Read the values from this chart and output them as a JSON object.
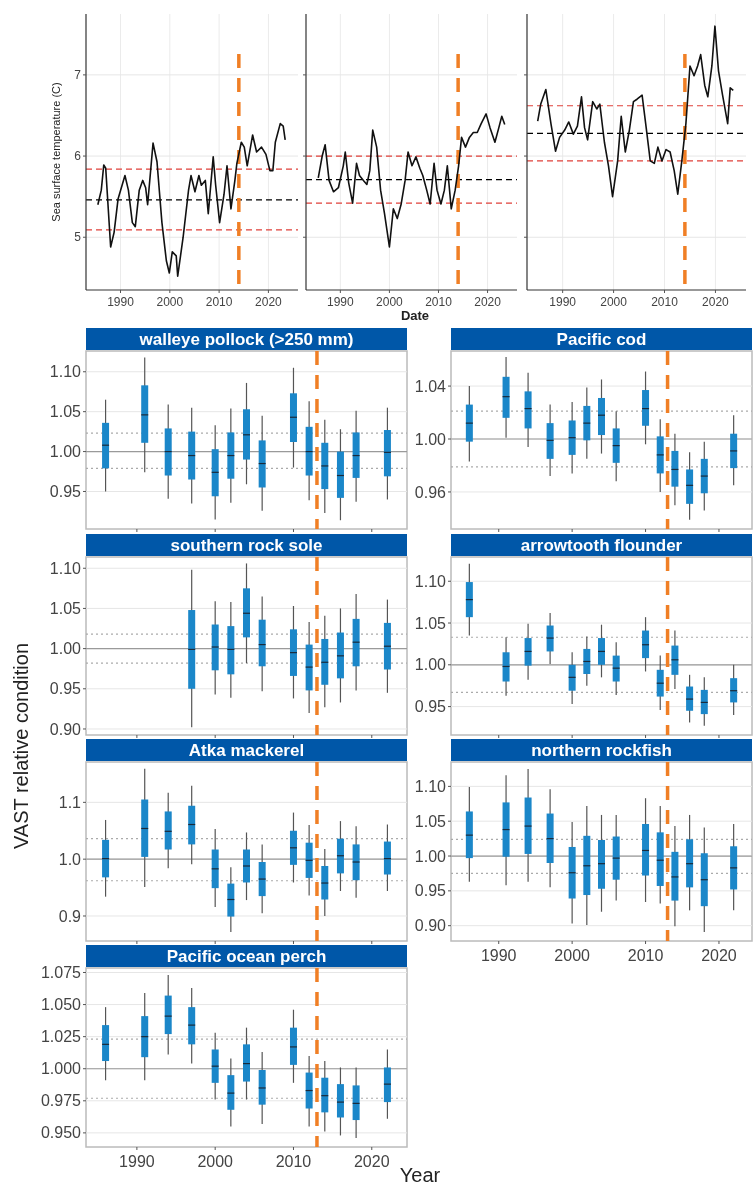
{
  "chart_data": [
    {
      "type": "line",
      "ylabel": "Sea surface temperature (C)",
      "xlim": [
        1983,
        2026
      ],
      "ylim": [
        4.35,
        7.75
      ],
      "xticks": [
        1990,
        2000,
        2010,
        2020
      ],
      "yticks": [
        5,
        6,
        7
      ],
      "grid": true,
      "ref_lines": [
        {
          "axis": "y",
          "value": 5.46,
          "color": "#000000",
          "line_style": "dashed"
        },
        {
          "axis": "y",
          "value": 5.84,
          "color": "#e0403a",
          "line_style": "dashed"
        },
        {
          "axis": "y",
          "value": 5.09,
          "color": "#e0403a",
          "line_style": "dashed"
        },
        {
          "axis": "x",
          "value": 2014,
          "color": "#f07f25",
          "line_style": "dashed"
        }
      ],
      "series": [
        {
          "color": "#111111",
          "x": [
            1985.4,
            1986.1,
            1986.6,
            1987,
            1988,
            1988.7,
            1989.5,
            1990.9,
            1991.6,
            1992.4,
            1993,
            1993.8,
            1994.5,
            1995.1,
            1995.5,
            1996.6,
            1997.4,
            1998.4,
            1999.3,
            1999.9,
            2000.5,
            2001.3,
            2001.6,
            2002.7,
            2003.8,
            2004.3,
            2005.1,
            2005.9,
            2006.4,
            2007.2,
            2007.8,
            2008.8,
            2009.3,
            2010.1,
            2011,
            2011.6,
            2012.4,
            2013.2,
            2013.6,
            2014.5,
            2015.1,
            2015.7,
            2016.8,
            2017.6,
            2018.6,
            2019.5,
            2020.3,
            2020.9,
            2021.4,
            2022.4,
            2023,
            2023.4
          ],
          "values": [
            5.4,
            5.58,
            5.89,
            5.85,
            4.88,
            5.06,
            5.47,
            5.76,
            5.58,
            5.18,
            5.13,
            5.58,
            5.7,
            5.61,
            5.4,
            6.16,
            5.93,
            5.18,
            4.71,
            4.56,
            4.82,
            4.77,
            4.52,
            5.0,
            5.58,
            5.76,
            5.56,
            5.76,
            5.64,
            5.7,
            5.29,
            5.99,
            5.64,
            5.18,
            5.53,
            5.88,
            5.35,
            5.7,
            5.91,
            6.17,
            6.11,
            5.88,
            6.26,
            6.05,
            6.11,
            6.02,
            5.82,
            5.82,
            6.17,
            6.4,
            6.37,
            6.2
          ]
        }
      ]
    },
    {
      "type": "line",
      "xlabel": "Date",
      "xlim": [
        1983,
        2026
      ],
      "ylim": [
        4.35,
        7.75
      ],
      "xticks": [
        1990,
        2000,
        2010,
        2020
      ],
      "yticks": [
        5,
        6,
        7
      ],
      "grid": true,
      "tick_labels": "x",
      "ref_lines": [
        {
          "axis": "y",
          "value": 5.71,
          "color": "#000000",
          "line_style": "dashed"
        },
        {
          "axis": "y",
          "value": 6.0,
          "color": "#e0403a",
          "line_style": "dashed"
        },
        {
          "axis": "y",
          "value": 5.42,
          "color": "#e0403a",
          "line_style": "dashed"
        },
        {
          "axis": "x",
          "value": 2014,
          "color": "#f07f25",
          "line_style": "dashed"
        }
      ],
      "series": [
        {
          "color": "#111111",
          "x": [
            1985.5,
            1986.3,
            1986.9,
            1987.7,
            1988.6,
            1989.6,
            1990.6,
            1991,
            1991.7,
            1992.5,
            1993.3,
            1993.9,
            1994.7,
            1995.4,
            1996,
            1996.6,
            1997.4,
            1998.2,
            1999,
            2000,
            2000.8,
            2001.6,
            2002.4,
            2003.2,
            2003.8,
            2004.6,
            2005.4,
            2006.2,
            2006.8,
            2007.6,
            2008.3,
            2009.1,
            2009.7,
            2010.5,
            2011.2,
            2011.8,
            2012.6,
            2013.4,
            2014.1,
            2014.7,
            2015.5,
            2016.3,
            2017.1,
            2017.9,
            2018.7,
            2019.7,
            2020.5,
            2021.5,
            2022.3,
            2022.9,
            2023.5
          ],
          "values": [
            5.73,
            6.0,
            6.14,
            5.7,
            5.56,
            5.61,
            5.88,
            6.05,
            5.67,
            5.42,
            5.91,
            5.76,
            5.7,
            5.65,
            5.82,
            6.32,
            6.11,
            5.58,
            5.29,
            4.88,
            5.35,
            5.23,
            5.41,
            5.7,
            6.05,
            5.88,
            5.99,
            5.85,
            5.76,
            5.58,
            5.41,
            5.91,
            5.58,
            5.41,
            5.58,
            5.88,
            5.35,
            5.58,
            5.88,
            6.23,
            6.11,
            6.23,
            6.29,
            6.29,
            6.4,
            6.52,
            6.35,
            6.17,
            6.35,
            6.49,
            6.39
          ]
        }
      ]
    },
    {
      "type": "line",
      "xlim": [
        1983,
        2026
      ],
      "ylim": [
        4.35,
        7.75
      ],
      "xticks": [
        1990,
        2000,
        2010,
        2020
      ],
      "yticks": [
        5,
        6,
        7
      ],
      "grid": true,
      "tick_labels": "x",
      "ref_lines": [
        {
          "axis": "y",
          "value": 6.28,
          "color": "#000000",
          "line_style": "dashed"
        },
        {
          "axis": "y",
          "value": 6.62,
          "color": "#e0403a",
          "line_style": "dashed"
        },
        {
          "axis": "y",
          "value": 5.94,
          "color": "#e0403a",
          "line_style": "dashed"
        },
        {
          "axis": "x",
          "value": 2014,
          "color": "#f07f25",
          "line_style": "dashed"
        }
      ],
      "series": [
        {
          "color": "#111111",
          "x": [
            1985.1,
            1985.7,
            1986.7,
            1987.7,
            1988.6,
            1989.4,
            1990.4,
            1991.2,
            1992.1,
            1992.9,
            1993.7,
            1994.3,
            1994.9,
            1995.9,
            1996.7,
            1997.3,
            1998.2,
            1999,
            1999.8,
            2000.8,
            2001.5,
            2002.3,
            2003.1,
            2003.9,
            2004.6,
            2005.6,
            2006.4,
            2007.2,
            2008,
            2008.7,
            2009.5,
            2010.3,
            2011.1,
            2011.9,
            2012.6,
            2013.4,
            2014.2,
            2015,
            2015.8,
            2016.5,
            2017.1,
            2017.9,
            2018.5,
            2019.3,
            2019.9,
            2020.6,
            2021.4,
            2022.4,
            2022.9,
            2023.5
          ],
          "values": [
            6.43,
            6.64,
            6.82,
            6.4,
            6.06,
            6.23,
            6.32,
            6.42,
            6.27,
            6.37,
            6.73,
            6.35,
            6.2,
            6.67,
            6.58,
            6.64,
            6.17,
            5.88,
            5.5,
            5.94,
            6.49,
            6.05,
            6.32,
            6.67,
            6.7,
            6.75,
            6.35,
            5.94,
            5.91,
            6.11,
            5.94,
            6.08,
            6.05,
            5.82,
            5.53,
            5.94,
            6.4,
            7.11,
            6.99,
            7.11,
            7.25,
            6.87,
            6.73,
            7.11,
            7.6,
            7.05,
            6.75,
            6.4,
            6.84,
            6.81
          ]
        }
      ]
    },
    {
      "type": "box",
      "title": "walleye pollock (>250 mm)",
      "color": "#1b87c9",
      "xlim": [
        1983.5,
        2024.5
      ],
      "ylim": [
        0.903,
        1.126
      ],
      "xticks": [
        1990,
        2000,
        2010,
        2020
      ],
      "yticks": [
        {
          "value": 0.95,
          "label": "0.95"
        },
        {
          "value": 1,
          "label": "1.00"
        },
        {
          "value": 1.05,
          "label": "1.05"
        },
        {
          "value": 1.1,
          "label": "1.10"
        }
      ],
      "grid": "y",
      "tick_labels": "y",
      "ref_lines": [
        {
          "axis": "y",
          "value": 1,
          "color": "#9a9a9a",
          "line_style": "solid"
        },
        {
          "axis": "y",
          "value": 1.023,
          "color": "#aaaaaa",
          "line_style": "dotted"
        },
        {
          "axis": "y",
          "value": 0.979,
          "color": "#aaaaaa",
          "line_style": "dotted"
        },
        {
          "axis": "x",
          "value": 2013,
          "color": "#f07f25",
          "line_style": "dashed"
        }
      ],
      "x": [
        1986,
        1991,
        1994,
        1997,
        2000,
        2002,
        2004,
        2006,
        2010,
        2012,
        2014,
        2016,
        2018,
        2022
      ],
      "boxes": [
        {
          "low": 0.95,
          "q1": 0.979,
          "median": 1.008,
          "q3": 1.036,
          "high": 1.065
        },
        {
          "low": 0.974,
          "q1": 1.011,
          "median": 1.046,
          "q3": 1.083,
          "high": 1.118
        },
        {
          "low": 0.941,
          "q1": 0.97,
          "median": 1.0,
          "q3": 1.029,
          "high": 1.059
        },
        {
          "low": 0.935,
          "q1": 0.965,
          "median": 0.995,
          "q3": 1.025,
          "high": 1.055
        },
        {
          "low": 0.915,
          "q1": 0.944,
          "median": 0.974,
          "q3": 1.003,
          "high": 1.033
        },
        {
          "low": 0.936,
          "q1": 0.966,
          "median": 0.995,
          "q3": 1.024,
          "high": 1.054
        },
        {
          "low": 0.959,
          "q1": 0.99,
          "median": 1.021,
          "q3": 1.053,
          "high": 1.086
        },
        {
          "low": 0.926,
          "q1": 0.955,
          "median": 0.985,
          "q3": 1.014,
          "high": 1.045
        },
        {
          "low": 0.98,
          "q1": 1.012,
          "median": 1.043,
          "q3": 1.073,
          "high": 1.105
        },
        {
          "low": 0.939,
          "q1": 0.97,
          "median": 1.0,
          "q3": 1.031,
          "high": 1.063
        },
        {
          "low": 0.923,
          "q1": 0.953,
          "median": 0.982,
          "q3": 1.011,
          "high": 1.04
        },
        {
          "low": 0.914,
          "q1": 0.942,
          "median": 0.97,
          "q3": 1.0,
          "high": 1.028
        },
        {
          "low": 0.937,
          "q1": 0.967,
          "median": 0.995,
          "q3": 1.024,
          "high": 1.051
        },
        {
          "low": 0.94,
          "q1": 0.969,
          "median": 0.999,
          "q3": 1.027,
          "high": 1.055
        }
      ]
    },
    {
      "type": "box",
      "title": "Pacific cod",
      "color": "#1b87c9",
      "xlim": [
        1983.5,
        2024.5
      ],
      "ylim": [
        0.932,
        1.0665
      ],
      "xticks": [
        1990,
        2000,
        2010,
        2020
      ],
      "yticks": [
        {
          "value": 0.96,
          "label": "0.96"
        },
        {
          "value": 1,
          "label": "1.00"
        },
        {
          "value": 1.04,
          "label": "1.04"
        }
      ],
      "grid": "y",
      "tick_labels": "y",
      "ref_lines": [
        {
          "axis": "y",
          "value": 1,
          "color": "#9a9a9a",
          "line_style": "solid"
        },
        {
          "axis": "y",
          "value": 1.021,
          "color": "#aaaaaa",
          "line_style": "dotted"
        },
        {
          "axis": "y",
          "value": 0.979,
          "color": "#aaaaaa",
          "line_style": "dotted"
        },
        {
          "axis": "x",
          "value": 2013,
          "color": "#f07f25",
          "line_style": "dashed"
        }
      ],
      "x": [
        1986,
        1991,
        1994,
        1997,
        2000,
        2002,
        2004,
        2006,
        2010,
        2012,
        2014,
        2016,
        2018,
        2022
      ],
      "boxes": [
        {
          "low": 0.983,
          "q1": 0.998,
          "median": 1.012,
          "q3": 1.026,
          "high": 1.04
        },
        {
          "low": 1.001,
          "q1": 1.016,
          "median": 1.032,
          "q3": 1.047,
          "high": 1.062
        },
        {
          "low": 0.994,
          "q1": 1.008,
          "median": 1.023,
          "q3": 1.036,
          "high": 1.05
        },
        {
          "low": 0.972,
          "q1": 0.985,
          "median": 0.999,
          "q3": 1.012,
          "high": 1.026
        },
        {
          "low": 0.974,
          "q1": 0.988,
          "median": 1.001,
          "q3": 1.014,
          "high": 1.028
        },
        {
          "low": 0.985,
          "q1": 0.999,
          "median": 1.012,
          "q3": 1.025,
          "high": 1.039
        },
        {
          "low": 0.989,
          "q1": 1.003,
          "median": 1.018,
          "q3": 1.031,
          "high": 1.045
        },
        {
          "low": 0.968,
          "q1": 0.982,
          "median": 0.995,
          "q3": 1.008,
          "high": 1.021
        },
        {
          "low": 0.996,
          "q1": 1.01,
          "median": 1.023,
          "q3": 1.037,
          "high": 1.051
        },
        {
          "low": 0.96,
          "q1": 0.974,
          "median": 0.988,
          "q3": 1.002,
          "high": 1.015
        },
        {
          "low": 0.95,
          "q1": 0.964,
          "median": 0.977,
          "q3": 0.991,
          "high": 1.004
        },
        {
          "low": 0.939,
          "q1": 0.951,
          "median": 0.965,
          "q3": 0.977,
          "high": 0.99
        },
        {
          "low": 0.946,
          "q1": 0.959,
          "median": 0.972,
          "q3": 0.985,
          "high": 0.998
        },
        {
          "low": 0.965,
          "q1": 0.978,
          "median": 0.991,
          "q3": 1.004,
          "high": 1.018
        }
      ]
    },
    {
      "type": "box",
      "title": "southern rock sole",
      "color": "#1b87c9",
      "xlim": [
        1983.5,
        2024.5
      ],
      "ylim": [
        0.8925,
        1.114
      ],
      "xticks": [
        1990,
        2000,
        2010,
        2020
      ],
      "yticks": [
        {
          "value": 0.9,
          "label": "0.90"
        },
        {
          "value": 0.95,
          "label": "0.95"
        },
        {
          "value": 1,
          "label": "1.00"
        },
        {
          "value": 1.05,
          "label": "1.05"
        },
        {
          "value": 1.1,
          "label": "1.10"
        }
      ],
      "grid": "y",
      "tick_labels": "y",
      "ref_lines": [
        {
          "axis": "y",
          "value": 1,
          "color": "#9a9a9a",
          "line_style": "solid"
        },
        {
          "axis": "y",
          "value": 1.018,
          "color": "#aaaaaa",
          "line_style": "dotted"
        },
        {
          "axis": "y",
          "value": 0.982,
          "color": "#aaaaaa",
          "line_style": "dotted"
        },
        {
          "axis": "x",
          "value": 2013,
          "color": "#f07f25",
          "line_style": "dashed"
        }
      ],
      "x": [
        1997,
        2000,
        2002,
        2004,
        2006,
        2010,
        2012,
        2014,
        2016,
        2018,
        2022
      ],
      "boxes": [
        {
          "low": 0.902,
          "q1": 0.95,
          "median": 0.999,
          "q3": 1.048,
          "high": 1.098
        },
        {
          "low": 0.943,
          "q1": 0.973,
          "median": 1.002,
          "q3": 1.03,
          "high": 1.059
        },
        {
          "low": 0.939,
          "q1": 0.968,
          "median": 0.999,
          "q3": 1.028,
          "high": 1.058
        },
        {
          "low": 0.982,
          "q1": 1.014,
          "median": 1.044,
          "q3": 1.075,
          "high": 1.106
        },
        {
          "low": 0.947,
          "q1": 0.978,
          "median": 1.005,
          "q3": 1.036,
          "high": 1.065
        },
        {
          "low": 0.938,
          "q1": 0.966,
          "median": 0.995,
          "q3": 1.024,
          "high": 1.053
        },
        {
          "low": 0.92,
          "q1": 0.948,
          "median": 0.977,
          "q3": 1.005,
          "high": 1.033
        },
        {
          "low": 0.927,
          "q1": 0.955,
          "median": 0.983,
          "q3": 1.012,
          "high": 1.041
        },
        {
          "low": 0.933,
          "q1": 0.963,
          "median": 0.991,
          "q3": 1.02,
          "high": 1.05
        },
        {
          "low": 0.948,
          "q1": 0.978,
          "median": 1.008,
          "q3": 1.037,
          "high": 1.068
        },
        {
          "low": 0.945,
          "q1": 0.974,
          "median": 1.003,
          "q3": 1.032,
          "high": 1.061
        }
      ]
    },
    {
      "type": "box",
      "title": "arrowtooth flounder",
      "color": "#1b87c9",
      "xlim": [
        1983.5,
        2024.5
      ],
      "ylim": [
        0.916,
        1.129
      ],
      "xticks": [
        1990,
        2000,
        2010,
        2020
      ],
      "yticks": [
        {
          "value": 0.95,
          "label": "0.95"
        },
        {
          "value": 1,
          "label": "1.00"
        },
        {
          "value": 1.05,
          "label": "1.05"
        },
        {
          "value": 1.1,
          "label": "1.10"
        }
      ],
      "grid": "y",
      "tick_labels": "y",
      "ref_lines": [
        {
          "axis": "y",
          "value": 1,
          "color": "#9a9a9a",
          "line_style": "solid"
        },
        {
          "axis": "y",
          "value": 1.033,
          "color": "#aaaaaa",
          "line_style": "dotted"
        },
        {
          "axis": "y",
          "value": 0.967,
          "color": "#aaaaaa",
          "line_style": "dotted"
        },
        {
          "axis": "x",
          "value": 2013,
          "color": "#f07f25",
          "line_style": "dashed"
        }
      ],
      "x": [
        1986,
        1991,
        1994,
        1997,
        2000,
        2002,
        2004,
        2006,
        2010,
        2012,
        2014,
        2016,
        2018,
        2022
      ],
      "boxes": [
        {
          "low": 1.035,
          "q1": 1.057,
          "median": 1.078,
          "q3": 1.099,
          "high": 1.121
        },
        {
          "low": 0.963,
          "q1": 0.98,
          "median": 0.998,
          "q3": 1.015,
          "high": 1.033
        },
        {
          "low": 0.982,
          "q1": 0.999,
          "median": 1.016,
          "q3": 1.032,
          "high": 1.049
        },
        {
          "low": 1.001,
          "q1": 1.016,
          "median": 1.032,
          "q3": 1.047,
          "high": 1.062
        },
        {
          "low": 0.953,
          "q1": 0.969,
          "median": 0.985,
          "q3": 1.0,
          "high": 1.015
        },
        {
          "low": 0.975,
          "q1": 0.989,
          "median": 1.004,
          "q3": 1.019,
          "high": 1.034
        },
        {
          "low": 0.985,
          "q1": 1.0,
          "median": 1.016,
          "q3": 1.032,
          "high": 1.048
        },
        {
          "low": 0.964,
          "q1": 0.98,
          "median": 0.996,
          "q3": 1.011,
          "high": 1.027
        },
        {
          "low": 0.992,
          "q1": 1.008,
          "median": 1.024,
          "q3": 1.041,
          "high": 1.057
        },
        {
          "low": 0.946,
          "q1": 0.962,
          "median": 0.978,
          "q3": 0.994,
          "high": 1.011
        },
        {
          "low": 0.971,
          "q1": 0.988,
          "median": 1.006,
          "q3": 1.023,
          "high": 1.041
        },
        {
          "low": 0.931,
          "q1": 0.945,
          "median": 0.959,
          "q3": 0.974,
          "high": 0.988
        },
        {
          "low": 0.927,
          "q1": 0.941,
          "median": 0.955,
          "q3": 0.97,
          "high": 0.985
        },
        {
          "low": 0.94,
          "q1": 0.955,
          "median": 0.969,
          "q3": 0.984,
          "high": 1.0
        }
      ]
    },
    {
      "type": "box",
      "title": "Atka mackerel",
      "ylabel": "VAST relative condition",
      "color": "#1b87c9",
      "xlim": [
        1983.5,
        2024.5
      ],
      "ylim": [
        0.856,
        1.171
      ],
      "xticks": [
        1990,
        2000,
        2010,
        2020
      ],
      "yticks": [
        {
          "value": 0.9,
          "label": "0.9"
        },
        {
          "value": 1,
          "label": "1.0"
        },
        {
          "value": 1.1,
          "label": "1.1"
        }
      ],
      "grid": "y",
      "tick_labels": "y",
      "ref_lines": [
        {
          "axis": "y",
          "value": 1,
          "color": "#9a9a9a",
          "line_style": "solid"
        },
        {
          "axis": "y",
          "value": 1.036,
          "color": "#aaaaaa",
          "line_style": "dotted"
        },
        {
          "axis": "y",
          "value": 0.962,
          "color": "#aaaaaa",
          "line_style": "dotted"
        },
        {
          "axis": "x",
          "value": 2013,
          "color": "#f07f25",
          "line_style": "dashed"
        }
      ],
      "x": [
        1986,
        1991,
        1994,
        1997,
        2000,
        2002,
        2004,
        2006,
        2010,
        2012,
        2014,
        2016,
        2018,
        2022
      ],
      "boxes": [
        {
          "low": 0.934,
          "q1": 0.968,
          "median": 1.001,
          "q3": 1.034,
          "high": 1.069
        },
        {
          "low": 0.951,
          "q1": 1.004,
          "median": 1.054,
          "q3": 1.105,
          "high": 1.159
        },
        {
          "low": 0.984,
          "q1": 1.017,
          "median": 1.049,
          "q3": 1.084,
          "high": 1.117
        },
        {
          "low": 0.991,
          "q1": 1.026,
          "median": 1.061,
          "q3": 1.094,
          "high": 1.129
        },
        {
          "low": 0.916,
          "q1": 0.949,
          "median": 0.983,
          "q3": 1.017,
          "high": 1.053
        },
        {
          "low": 0.872,
          "q1": 0.899,
          "median": 0.929,
          "q3": 0.957,
          "high": 0.986
        },
        {
          "low": 0.928,
          "q1": 0.959,
          "median": 0.988,
          "q3": 1.017,
          "high": 1.047
        },
        {
          "low": 0.905,
          "q1": 0.935,
          "median": 0.965,
          "q3": 0.995,
          "high": 1.026
        },
        {
          "low": 0.959,
          "q1": 0.99,
          "median": 1.02,
          "q3": 1.05,
          "high": 1.082
        },
        {
          "low": 0.936,
          "q1": 0.967,
          "median": 0.998,
          "q3": 1.029,
          "high": 1.06
        },
        {
          "low": 0.9,
          "q1": 0.929,
          "median": 0.958,
          "q3": 0.988,
          "high": 1.018
        },
        {
          "low": 0.944,
          "q1": 0.975,
          "median": 1.006,
          "q3": 1.036,
          "high": 1.067
        },
        {
          "low": 0.932,
          "q1": 0.963,
          "median": 0.995,
          "q3": 1.026,
          "high": 1.058
        },
        {
          "low": 0.944,
          "q1": 0.973,
          "median": 1.001,
          "q3": 1.031,
          "high": 1.061
        }
      ]
    },
    {
      "type": "box",
      "title": "northern rockfish",
      "color": "#1b87c9",
      "xlim": [
        1983.5,
        2024.5
      ],
      "ylim": [
        0.878,
        1.135
      ],
      "xticks": [
        1990,
        2000,
        2010,
        2020
      ],
      "yticks": [
        {
          "value": 0.9,
          "label": "0.90"
        },
        {
          "value": 0.95,
          "label": "0.95"
        },
        {
          "value": 1,
          "label": "1.00"
        },
        {
          "value": 1.05,
          "label": "1.05"
        },
        {
          "value": 1.1,
          "label": "1.10"
        }
      ],
      "grid": "y",
      "ref_lines": [
        {
          "axis": "y",
          "value": 1,
          "color": "#9a9a9a",
          "line_style": "solid"
        },
        {
          "axis": "y",
          "value": 1.024,
          "color": "#aaaaaa",
          "line_style": "dotted"
        },
        {
          "axis": "y",
          "value": 0.975,
          "color": "#aaaaaa",
          "line_style": "dotted"
        },
        {
          "axis": "x",
          "value": 2013,
          "color": "#f07f25",
          "line_style": "dashed"
        }
      ],
      "x": [
        1986,
        1991,
        1994,
        1997,
        2000,
        2002,
        2004,
        2006,
        2010,
        2012,
        2014,
        2016,
        2018,
        2022
      ],
      "boxes": [
        {
          "low": 0.963,
          "q1": 0.997,
          "median": 1.03,
          "q3": 1.064,
          "high": 1.099
        },
        {
          "low": 0.958,
          "q1": 0.999,
          "median": 1.038,
          "q3": 1.077,
          "high": 1.116
        },
        {
          "low": 0.963,
          "q1": 1.003,
          "median": 1.043,
          "q3": 1.084,
          "high": 1.125
        },
        {
          "low": 0.955,
          "q1": 0.99,
          "median": 1.025,
          "q3": 1.061,
          "high": 1.096
        },
        {
          "low": 0.903,
          "q1": 0.939,
          "median": 0.976,
          "q3": 1.013,
          "high": 1.049
        },
        {
          "low": 0.901,
          "q1": 0.944,
          "median": 0.986,
          "q3": 1.029,
          "high": 1.072
        },
        {
          "low": 0.92,
          "q1": 0.953,
          "median": 0.989,
          "q3": 1.023,
          "high": 1.059
        },
        {
          "low": 0.936,
          "q1": 0.966,
          "median": 0.997,
          "q3": 1.028,
          "high": 1.059
        },
        {
          "low": 0.934,
          "q1": 0.972,
          "median": 1.008,
          "q3": 1.046,
          "high": 1.083
        },
        {
          "low": 0.932,
          "q1": 0.957,
          "median": 0.994,
          "q3": 1.034,
          "high": 1.072
        },
        {
          "low": 0.899,
          "q1": 0.936,
          "median": 0.97,
          "q3": 1.006,
          "high": 1.043
        },
        {
          "low": 0.922,
          "q1": 0.955,
          "median": 0.989,
          "q3": 1.024,
          "high": 1.059
        },
        {
          "low": 0.891,
          "q1": 0.928,
          "median": 0.966,
          "q3": 1.004,
          "high": 1.041
        },
        {
          "low": 0.922,
          "q1": 0.952,
          "median": 0.983,
          "q3": 1.014,
          "high": 1.046
        }
      ]
    },
    {
      "type": "box",
      "title": "Pacific ocean perch",
      "xlabel": "Year",
      "color": "#1b87c9",
      "xlim": [
        1983.5,
        2024.5
      ],
      "ylim": [
        0.939,
        1.0785
      ],
      "xticks": [
        1990,
        2000,
        2010,
        2020
      ],
      "yticks": [
        {
          "value": 0.95,
          "label": "0.950"
        },
        {
          "value": 0.975,
          "label": "0.975"
        },
        {
          "value": 1,
          "label": "1.000"
        },
        {
          "value": 1.025,
          "label": "1.025"
        },
        {
          "value": 1.05,
          "label": "1.050"
        },
        {
          "value": 1.075,
          "label": "1.075"
        }
      ],
      "grid": "y",
      "ref_lines": [
        {
          "axis": "y",
          "value": 1,
          "color": "#9a9a9a",
          "line_style": "solid"
        },
        {
          "axis": "y",
          "value": 1.023,
          "color": "#aaaaaa",
          "line_style": "dotted"
        },
        {
          "axis": "y",
          "value": 0.977,
          "color": "#aaaaaa",
          "line_style": "dotted"
        },
        {
          "axis": "x",
          "value": 2013,
          "color": "#f07f25",
          "line_style": "dashed"
        }
      ],
      "x": [
        1986,
        1991,
        1994,
        1997,
        2000,
        2002,
        2004,
        2006,
        2010,
        2012,
        2014,
        2016,
        2018,
        2022
      ],
      "boxes": [
        {
          "low": 0.991,
          "q1": 1.006,
          "median": 1.019,
          "q3": 1.034,
          "high": 1.048
        },
        {
          "low": 0.991,
          "q1": 1.009,
          "median": 1.025,
          "q3": 1.041,
          "high": 1.059
        },
        {
          "low": 1.011,
          "q1": 1.027,
          "median": 1.041,
          "q3": 1.057,
          "high": 1.073
        },
        {
          "low": 1.004,
          "q1": 1.019,
          "median": 1.034,
          "q3": 1.048,
          "high": 1.063
        },
        {
          "low": 0.976,
          "q1": 0.989,
          "median": 1.002,
          "q3": 1.015,
          "high": 1.028
        },
        {
          "low": 0.955,
          "q1": 0.968,
          "median": 0.981,
          "q3": 0.995,
          "high": 1.008
        },
        {
          "low": 0.976,
          "q1": 0.99,
          "median": 1.004,
          "q3": 1.019,
          "high": 1.032
        },
        {
          "low": 0.957,
          "q1": 0.972,
          "median": 0.985,
          "q3": 0.999,
          "high": 1.013
        },
        {
          "low": 0.989,
          "q1": 1.003,
          "median": 1.017,
          "q3": 1.032,
          "high": 1.046
        },
        {
          "low": 0.955,
          "q1": 0.969,
          "median": 0.983,
          "q3": 0.997,
          "high": 1.01
        },
        {
          "low": 0.951,
          "q1": 0.966,
          "median": 0.979,
          "q3": 0.993,
          "high": 1.006
        },
        {
          "low": 0.948,
          "q1": 0.962,
          "median": 0.974,
          "q3": 0.988,
          "high": 1.001
        },
        {
          "low": 0.946,
          "q1": 0.96,
          "median": 0.973,
          "q3": 0.987,
          "high": 1.001
        },
        {
          "low": 0.961,
          "q1": 0.974,
          "median": 0.988,
          "q3": 1.001,
          "high": 1.015
        }
      ]
    }
  ]
}
